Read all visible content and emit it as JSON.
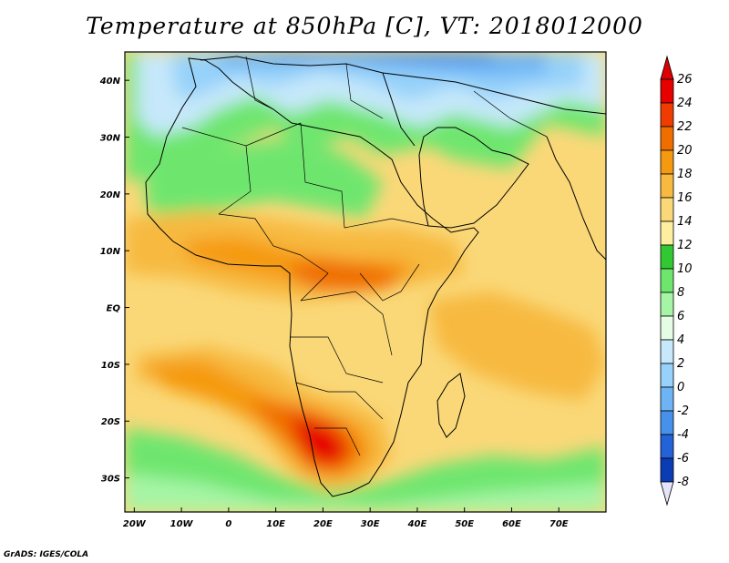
{
  "title": "Temperature at 850hPa [C], VT: 2018012000",
  "credit": "GrADS: IGES/COLA",
  "map": {
    "lon_range": [
      -22,
      80
    ],
    "lat_range": [
      -36,
      45
    ],
    "lat_ticks": [
      {
        "value": 40,
        "label": "40N"
      },
      {
        "value": 30,
        "label": "30N"
      },
      {
        "value": 20,
        "label": "20N"
      },
      {
        "value": 10,
        "label": "10N"
      },
      {
        "value": 0,
        "label": "EQ"
      },
      {
        "value": -10,
        "label": "10S"
      },
      {
        "value": -20,
        "label": "20S"
      },
      {
        "value": -30,
        "label": "30S"
      }
    ],
    "lon_ticks": [
      {
        "value": -20,
        "label": "20W"
      },
      {
        "value": -10,
        "label": "10W"
      },
      {
        "value": 0,
        "label": "0"
      },
      {
        "value": 10,
        "label": "10E"
      },
      {
        "value": 20,
        "label": "20E"
      },
      {
        "value": 30,
        "label": "30E"
      },
      {
        "value": 40,
        "label": "40E"
      },
      {
        "value": 50,
        "label": "50E"
      },
      {
        "value": 60,
        "label": "60E"
      },
      {
        "value": 70,
        "label": "70E"
      }
    ]
  },
  "colorbar": {
    "levels": [
      26,
      24,
      22,
      20,
      18,
      16,
      14,
      12,
      10,
      8,
      6,
      4,
      2,
      0,
      -2,
      -4,
      -6,
      -8
    ],
    "labels": [
      "26",
      "24",
      "22",
      "20",
      "18",
      "16",
      "14",
      "12",
      "10",
      "8",
      "6",
      "4",
      "2",
      "0",
      "-2",
      "-4",
      "-6",
      "-8"
    ],
    "colors": [
      "#e60000",
      "#f03c00",
      "#f06e00",
      "#f59a10",
      "#f7b940",
      "#fad878",
      "#fdeea0",
      "#32c832",
      "#6ee66e",
      "#a6f5a6",
      "#e4fde4",
      "#c6e8fa",
      "#96d2fa",
      "#6eb4f5",
      "#4691eb",
      "#2362d7",
      "#0a3cb4",
      "#000a78"
    ],
    "over_color": "#dc0000",
    "under_color": "#e4e4fa"
  }
}
